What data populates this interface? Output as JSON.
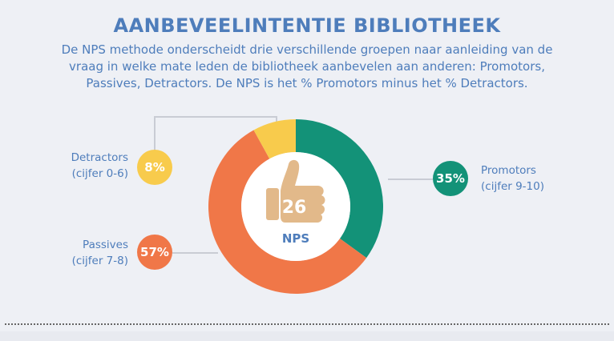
{
  "title": "AANBEVEELINTENTIE BIBLIOTHEEK",
  "subtitle_lines": [
    "De NPS methode onderscheidt drie verschillende groepen naar aanleiding van de",
    "vraag in welke mate leden de bibliotheek aanbevelen aan anderen: Promotors,",
    "Passives, Detractors. De NPS is het % Promotors minus het % Detractors."
  ],
  "nps": {
    "value": "26",
    "label": "NPS"
  },
  "chart_data": {
    "type": "pie",
    "variant": "donut",
    "title": "AANBEVEELINTENTIE BIBLIOTHEEK",
    "unit": "%",
    "series": [
      {
        "name": "Promotors",
        "sublabel": "(cijfer 9-10)",
        "value": 35,
        "value_label": "35%",
        "color": "#139278"
      },
      {
        "name": "Passives",
        "sublabel": "(cijfer 7-8)",
        "value": 57,
        "value_label": "57%",
        "color": "#f07748"
      },
      {
        "name": "Detractors",
        "sublabel": "(cijfer 0-6)",
        "value": 8,
        "value_label": "8%",
        "color": "#f8cb4c"
      }
    ]
  },
  "colors": {
    "text": "#4e7dbb",
    "background": "#eef0f5",
    "thumb": "#e2b98a",
    "connector": "#c9ccd4"
  },
  "icons": {
    "center": "thumbs-up-icon"
  }
}
